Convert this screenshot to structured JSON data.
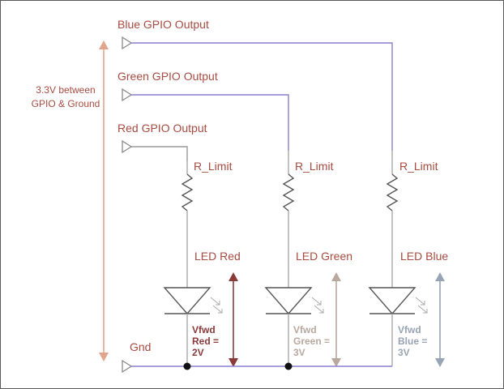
{
  "labels": {
    "blue_output": "Blue GPIO Output",
    "green_output": "Green GPIO Output",
    "red_output": "Red GPIO Output",
    "voltage_line1": "3.3V between",
    "voltage_line2": "GPIO & Ground",
    "gnd": "Gnd"
  },
  "branches": [
    {
      "resistor": "R_Limit",
      "led": "LED Red",
      "vf1": "Vfwd",
      "vf2": "Red =",
      "vf3": "2V",
      "color": "#8b3a3a"
    },
    {
      "resistor": "R_Limit",
      "led": "LED Green",
      "vf1": "Vfwd",
      "vf2": "Green =",
      "vf3": "3V",
      "color": "#b8a89e"
    },
    {
      "resistor": "R_Limit",
      "led": "LED Blue",
      "vf1": "Vfwd",
      "vf2": "Blue =",
      "vf3": "3V",
      "color": "#98a4b4"
    }
  ],
  "colors": {
    "wire": "#a8a8a8",
    "text": "#a84b40",
    "blue_wire": "#8a7fd0",
    "voltage_arrow": "#e0a58a"
  }
}
